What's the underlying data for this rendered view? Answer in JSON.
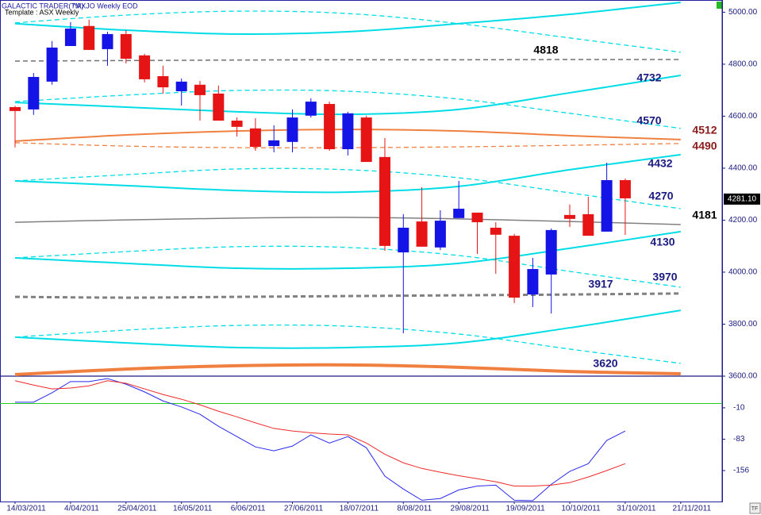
{
  "chart_data": {
    "type": "candlestick",
    "title": "GALACTIC TRADER(TM)",
    "subtitle": "^AXJO Weekly EOD",
    "template": "Template : ASX Weekly",
    "categories": [
      "14/03/2011",
      null,
      null,
      "4/04/2011",
      null,
      null,
      "25/04/2011",
      null,
      null,
      "16/05/2011",
      null,
      null,
      "6/06/2011",
      null,
      null,
      "27/06/2011",
      null,
      null,
      "18/07/2011",
      null,
      null,
      "8/08/2011",
      null,
      null,
      "29/08/2011",
      null,
      null,
      "19/09/2011",
      null,
      null,
      "10/10/2011",
      null,
      null,
      "31/10/2011",
      null,
      null,
      "21/11/2011"
    ],
    "up_color": "#1414e6",
    "down_color": "#e61414",
    "open": [
      4635,
      4626,
      4733,
      4870,
      4947,
      4858,
      4916,
      4834,
      4754,
      4696,
      4721,
      4687,
      4583,
      4553,
      4485,
      4501,
      4602,
      4647,
      4473,
      4595,
      4443,
      4076,
      4195,
      4095,
      4208,
      4229,
      4171,
      4140,
      3914,
      3991,
      4220,
      4223,
      4156,
      4354,
      null,
      null,
      null
    ],
    "high": [
      4640,
      4766,
      4889,
      4962,
      4971,
      4925,
      4931,
      4840,
      4794,
      4745,
      4736,
      4718,
      4595,
      4592,
      4565,
      4626,
      4669,
      4656,
      4617,
      4602,
      4516,
      4223,
      4327,
      4238,
      4351,
      4229,
      4192,
      4147,
      4055,
      4168,
      4260,
      4290,
      4421,
      4360,
      null,
      null,
      null
    ],
    "low": [
      4480,
      4605,
      4721,
      4870,
      4855,
      4794,
      4803,
      4730,
      4687,
      4641,
      4583,
      4583,
      4522,
      4467,
      4461,
      4461,
      4595,
      4467,
      4449,
      4424,
      4082,
      3765,
      4098,
      4085,
      4208,
      4070,
      3994,
      3881,
      3866,
      3841,
      4174,
      4140,
      4156,
      4143,
      null,
      null,
      null
    ],
    "close": [
      4620,
      4751,
      4864,
      4937,
      4855,
      4916,
      4821,
      4742,
      4711,
      4733,
      4681,
      4583,
      4559,
      4482,
      4507,
      4595,
      4656,
      4473,
      4611,
      4424,
      4101,
      4171,
      4098,
      4198,
      4244,
      4192,
      4144,
      3902,
      4012,
      4162,
      4205,
      4140,
      4354,
      4284,
      null,
      null,
      null
    ],
    "ylim": [
      3600,
      5047
    ],
    "yticks": [
      {
        "value": 3600,
        "label": "3600.00"
      },
      {
        "value": 3800,
        "label": "3800.00"
      },
      {
        "value": 4000,
        "label": "4000.00"
      },
      {
        "value": 4200,
        "label": "4200.00"
      },
      {
        "value": 4400,
        "label": "4400.00"
      },
      {
        "value": 4600,
        "label": "4600.00"
      },
      {
        "value": 4800,
        "label": "4800.00"
      },
      {
        "value": 5000,
        "label": "5000.00"
      }
    ],
    "last_price": {
      "value": 4281.1,
      "label": "4281.10"
    },
    "overlay_x": [
      "14/03/2011",
      "25/04/2011",
      "6/06/2011",
      "18/07/2011",
      "29/08/2011",
      "10/10/2011",
      "21/11/2011"
    ],
    "overlays": [
      {
        "color": "#00dde6",
        "dash": false,
        "width": 2,
        "values": [
          4956,
          4931,
          4916,
          4925,
          4956,
          4992,
          5038
        ]
      },
      {
        "color": "#00dde6",
        "dash": true,
        "width": 1.3,
        "values": [
          4959,
          4989,
          5004,
          4995,
          4956,
          4901,
          4846
        ]
      },
      {
        "color": "#707070",
        "dash": true,
        "width": 1.5,
        "values": [
          4812,
          4814,
          4816,
          4817,
          4817,
          4818,
          4818
        ],
        "label": "4818",
        "label_color": "#000000"
      },
      {
        "color": "#00dde6",
        "dash": false,
        "width": 2,
        "values": [
          4653,
          4635,
          4617,
          4607,
          4626,
          4690,
          4757
        ],
        "label": "4732",
        "label_color": "#1a1a80"
      },
      {
        "color": "#00dde6",
        "dash": true,
        "width": 1.3,
        "values": [
          4656,
          4681,
          4699,
          4696,
          4666,
          4611,
          4553
        ],
        "label": "4570",
        "label_color": "#1a1a80"
      },
      {
        "color": "#f08040",
        "dash": false,
        "width": 2,
        "values": [
          4504,
          4528,
          4543,
          4549,
          4543,
          4525,
          4510
        ],
        "label": "4512",
        "label_color": "#8b1a1a"
      },
      {
        "color": "#f08040",
        "dash": true,
        "width": 1.3,
        "values": [
          4498,
          4485,
          4479,
          4479,
          4482,
          4488,
          4495
        ],
        "label": "4490",
        "label_color": "#8b1a1a"
      },
      {
        "color": "#00dde6",
        "dash": false,
        "width": 2,
        "values": [
          4351,
          4333,
          4314,
          4308,
          4330,
          4394,
          4452
        ],
        "label": "4432",
        "label_color": "#1a1a80"
      },
      {
        "color": "#00dde6",
        "dash": true,
        "width": 1.3,
        "values": [
          4351,
          4375,
          4397,
          4394,
          4363,
          4305,
          4244
        ],
        "label": "4270",
        "label_color": "#1a1a80"
      },
      {
        "color": "#808080",
        "dash": false,
        "width": 1.5,
        "values": [
          4192,
          4201,
          4208,
          4211,
          4205,
          4195,
          4183
        ],
        "label": "4181",
        "label_color": "#000000"
      },
      {
        "color": "#00dde6",
        "dash": false,
        "width": 2,
        "values": [
          4055,
          4034,
          4015,
          4015,
          4034,
          4092,
          4156
        ],
        "label": "4130",
        "label_color": "#1a1a80"
      },
      {
        "color": "#00dde6",
        "dash": true,
        "width": 1.3,
        "values": [
          4055,
          4079,
          4098,
          4095,
          4064,
          4003,
          3942
        ],
        "label": "3970",
        "label_color": "#1a1a80"
      },
      {
        "color": "#808080",
        "dash": true,
        "width": 3,
        "values": [
          3905,
          3902,
          3905,
          3908,
          3911,
          3914,
          3918
        ],
        "label": "3917",
        "label_color": "#1a1a80"
      },
      {
        "color": "#00dde6",
        "dash": false,
        "width": 2,
        "values": [
          3750,
          3728,
          3710,
          3710,
          3728,
          3786,
          3853
        ]
      },
      {
        "color": "#00dde6",
        "dash": true,
        "width": 1.3,
        "values": [
          3750,
          3777,
          3795,
          3792,
          3762,
          3704,
          3649
        ]
      },
      {
        "color": "#f08040",
        "dash": false,
        "width": 4,
        "values": [
          3606,
          3627,
          3640,
          3643,
          3634,
          3618,
          3609
        ],
        "label": "3620",
        "label_color": "#1a1a80"
      }
    ],
    "indicator": {
      "type": "line",
      "ylim": [
        -228,
        60
      ],
      "yticks": [
        -10,
        -83,
        -156
      ],
      "reference_line": 0,
      "reference_color": "#22cc22",
      "series": [
        {
          "color": "#2a2aee",
          "values": [
            3,
            3,
            25,
            51,
            51,
            58,
            45,
            27,
            6,
            -8,
            -25,
            -53,
            -77,
            -101,
            -110,
            -99,
            -73,
            -92,
            -77,
            -103,
            -169,
            -199,
            -225,
            -221,
            -201,
            -192,
            -190,
            -225,
            -226,
            -188,
            -158,
            -140,
            -86,
            -64,
            null,
            null,
            null
          ]
        },
        {
          "color": "#ee2a2a",
          "values": [
            53,
            43,
            34,
            36,
            41,
            53,
            47,
            34,
            21,
            10,
            -3,
            -18,
            -31,
            -45,
            -58,
            -64,
            -68,
            -71,
            -73,
            -92,
            -118,
            -138,
            -151,
            -160,
            -168,
            -175,
            -182,
            -192,
            -192,
            -190,
            -184,
            -171,
            -156,
            -140,
            null,
            null,
            null
          ]
        }
      ]
    }
  }
}
